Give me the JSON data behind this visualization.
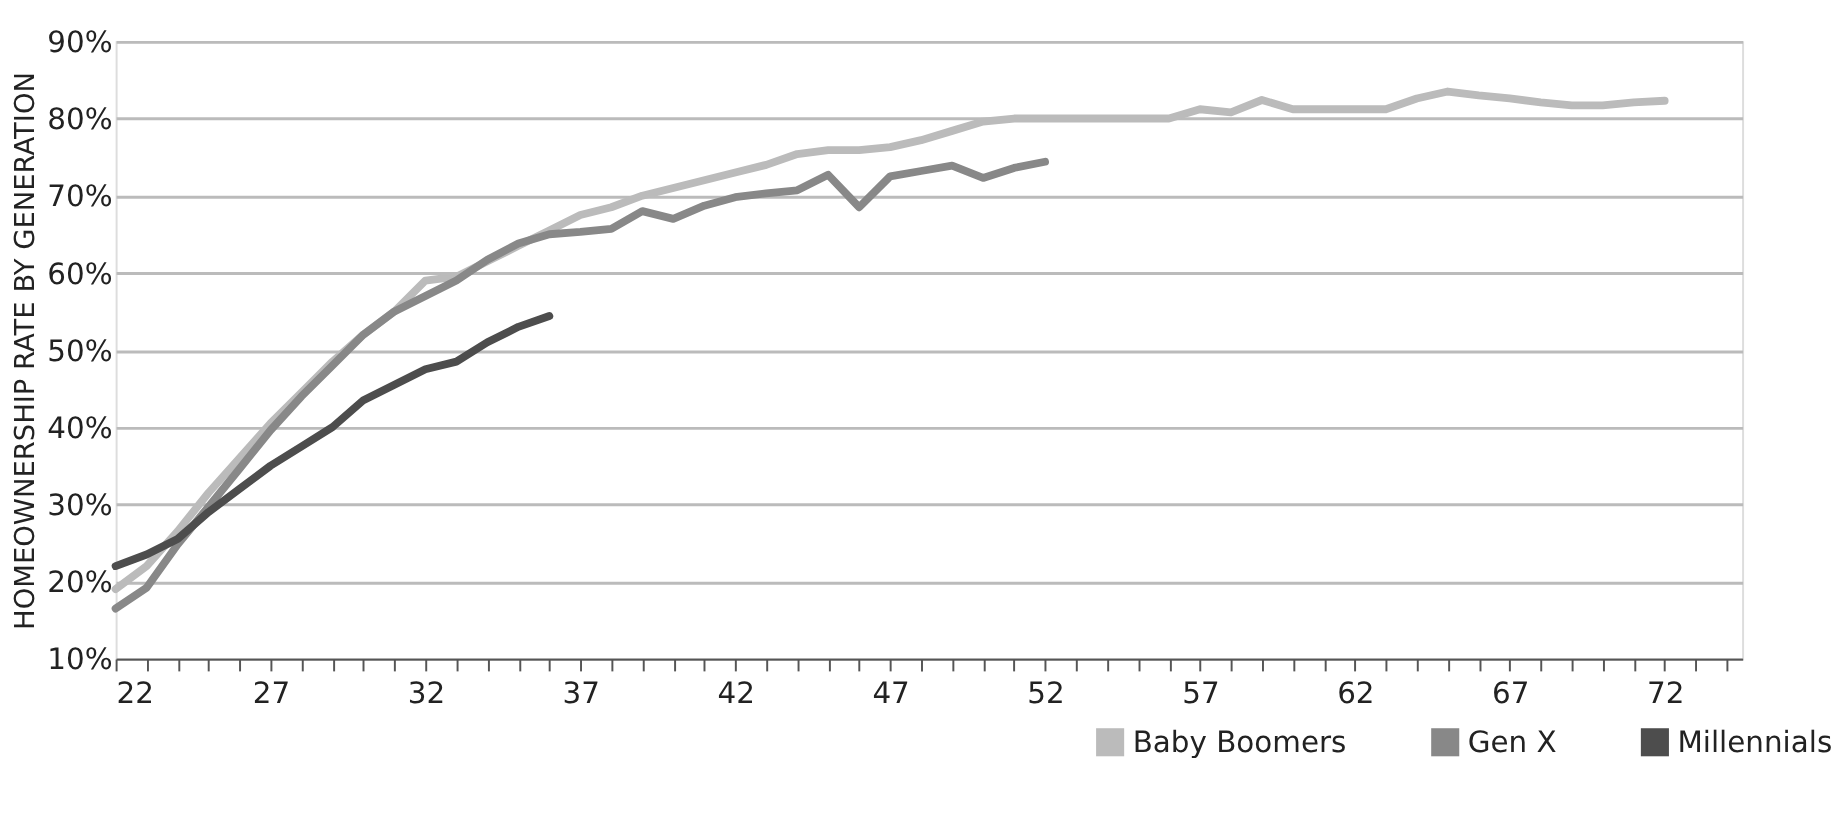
{
  "chart_data": {
    "type": "line",
    "ylabel": "HOMEOWNERSHIP RATE BY GENERATION",
    "x": [
      22,
      23,
      24,
      25,
      26,
      27,
      28,
      29,
      30,
      31,
      32,
      33,
      34,
      35,
      36,
      37,
      38,
      39,
      40,
      41,
      42,
      43,
      44,
      45,
      46,
      47,
      48,
      49,
      50,
      51,
      52,
      53,
      54,
      55,
      56,
      57,
      58,
      59,
      60,
      61,
      62,
      63,
      64,
      65,
      66,
      67,
      68,
      69,
      70,
      71,
      72
    ],
    "series": [
      {
        "name": "Baby Boomers",
        "color": "#bbbbbb",
        "values": [
          19,
          22,
          26.5,
          31.5,
          36,
          40.5,
          44.5,
          48.5,
          52,
          55,
          59,
          59.5,
          61.5,
          63.5,
          65.5,
          67.5,
          68.5,
          70,
          71,
          72,
          73,
          74,
          75.4,
          75.9,
          75.9,
          76.3,
          77.2,
          78.4,
          79.6,
          80,
          80,
          80,
          80,
          80,
          80,
          81.2,
          80.8,
          82.4,
          81.2,
          81.2,
          81.2,
          81.2,
          82.6,
          83.5,
          83,
          82.6,
          82.1,
          81.7,
          81.7,
          82.1,
          82.3
        ]
      },
      {
        "name": "Gen X",
        "color": "#888888",
        "x": [
          22,
          23,
          24,
          25,
          26,
          27,
          28,
          29,
          30,
          31,
          32,
          33,
          34,
          35,
          36,
          37,
          38,
          39,
          40,
          41,
          42,
          43,
          44,
          45,
          46,
          47,
          48,
          49,
          50,
          51,
          52
        ],
        "values": [
          16.5,
          19.2,
          24.8,
          29.7,
          34.6,
          39.6,
          44,
          48,
          52,
          55,
          57,
          59,
          61.7,
          63.8,
          65,
          65.3,
          65.7,
          68,
          67,
          68.7,
          69.8,
          70.3,
          70.7,
          72.7,
          68.5,
          72.5,
          73.2,
          73.9,
          72.3,
          73.6,
          74.4
        ]
      },
      {
        "name": "Millennials",
        "color": "#4d4d4d",
        "x": [
          22,
          23,
          24,
          25,
          26,
          27,
          28,
          29,
          30,
          31,
          32,
          33,
          34,
          35,
          36
        ],
        "values": [
          22,
          23.5,
          25.5,
          29,
          32,
          35,
          37.5,
          40,
          43.5,
          45.5,
          47.5,
          48.5,
          51,
          53,
          54.4
        ]
      }
    ],
    "xlim": [
      22,
      74.5
    ],
    "xticks": [
      22,
      {
        "value": 23,
        "label": null
      },
      {
        "value": 24,
        "label": null
      },
      {
        "value": 25,
        "label": null
      },
      {
        "value": 26,
        "label": null
      },
      27,
      {
        "value": 28,
        "label": null
      },
      {
        "value": 29,
        "label": null
      },
      {
        "value": 30,
        "label": null
      },
      {
        "value": 31,
        "label": null
      },
      32,
      {
        "value": 33,
        "label": null
      },
      {
        "value": 34,
        "label": null
      },
      {
        "value": 35,
        "label": null
      },
      {
        "value": 36,
        "label": null
      },
      37,
      {
        "value": 38,
        "label": null
      },
      {
        "value": 39,
        "label": null
      },
      {
        "value": 40,
        "label": null
      },
      {
        "value": 41,
        "label": null
      },
      42,
      {
        "value": 43,
        "label": null
      },
      {
        "value": 44,
        "label": null
      },
      {
        "value": 45,
        "label": null
      },
      {
        "value": 46,
        "label": null
      },
      47,
      {
        "value": 48,
        "label": null
      },
      {
        "value": 49,
        "label": null
      },
      {
        "value": 50,
        "label": null
      },
      {
        "value": 51,
        "label": null
      },
      52,
      {
        "value": 53,
        "label": null
      },
      {
        "value": 54,
        "label": null
      },
      {
        "value": 55,
        "label": null
      },
      {
        "value": 56,
        "label": null
      },
      57,
      {
        "value": 58,
        "label": null
      },
      {
        "value": 59,
        "label": null
      },
      {
        "value": 60,
        "label": null
      },
      {
        "value": 61,
        "label": null
      },
      62,
      {
        "value": 63,
        "label": null
      },
      {
        "value": 64,
        "label": null
      },
      {
        "value": 65,
        "label": null
      },
      {
        "value": 66,
        "label": null
      },
      67,
      {
        "value": 68,
        "label": null
      },
      {
        "value": 69,
        "label": null
      },
      {
        "value": 70,
        "label": null
      },
      {
        "value": 71,
        "label": null
      },
      72,
      {
        "value": 73,
        "label": null
      },
      {
        "value": 74,
        "label": null
      }
    ],
    "ylim": [
      10,
      90
    ],
    "yticks": [
      {
        "value": 10,
        "label": "10%"
      },
      {
        "value": 20,
        "label": "20%"
      },
      {
        "value": 30,
        "label": "30%"
      },
      {
        "value": 40,
        "label": "40%"
      },
      {
        "value": 50,
        "label": "50%"
      },
      {
        "value": 60,
        "label": "60%"
      },
      {
        "value": 70,
        "label": "70%"
      },
      {
        "value": 80,
        "label": "80%"
      },
      {
        "value": 90,
        "label": "90%"
      }
    ],
    "grid": "y",
    "legend": "bottom right",
    "marker": "none",
    "line_style": "solid"
  }
}
